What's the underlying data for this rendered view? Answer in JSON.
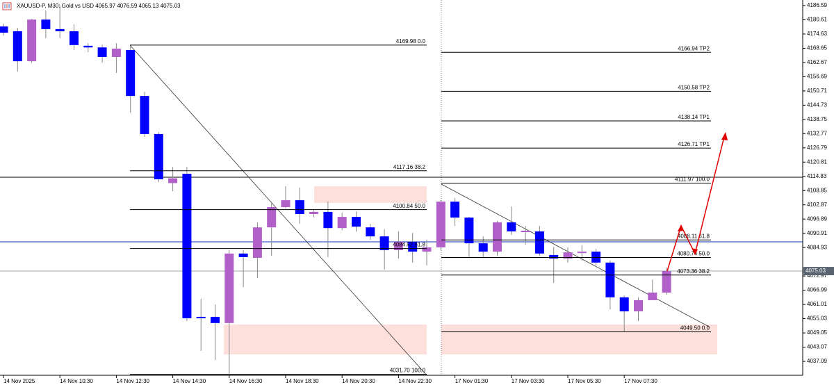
{
  "chart_data": {
    "type": "candlestick",
    "title": "XAUUSD-P, M30:  Gold vs USD  4065.97 4076.59 4065.13 4075.03",
    "categories": [
      "14 Nov 2025",
      null,
      null,
      null,
      "14 Nov 10:30",
      null,
      null,
      null,
      "14 Nov 12:30",
      null,
      null,
      null,
      "14 Nov 14:30",
      null,
      null,
      null,
      "14 Nov 16:30",
      null,
      null,
      null,
      "14 Nov 18:30",
      null,
      null,
      null,
      "14 Nov 20:30",
      null,
      null,
      null,
      "14 Nov 22:30",
      null,
      null,
      null,
      "17 Nov 01:30",
      null,
      null,
      null,
      "17 Nov 03:30",
      null,
      null,
      null,
      "17 Nov 05:30",
      null,
      null,
      null,
      "17 Nov 07:30",
      null,
      null,
      null
    ],
    "open": [
      4177.8,
      4175.8,
      4163.2,
      4180.7,
      4176.7,
      4175.8,
      4169.7,
      4169.0,
      4165.0,
      4167.9,
      4148.6,
      4132.6,
      4112.0,
      4115.9,
      4055.8,
      4055.8,
      4053.2,
      4082.4,
      4080.6,
      4093.4,
      4101.9,
      4104.8,
      4099.0,
      4099.9,
      4093.1,
      4097.8,
      4093.4,
      4089.6,
      4083.8,
      4087.3,
      4083.2,
      4085.0,
      4104.2,
      4097.5,
      4086.7,
      4083.2,
      4095.5,
      4091.4,
      4091.7,
      4081.8,
      4080.3,
      4082.6,
      4083.2,
      4078.6,
      4064.0,
      4058.1,
      4062.8,
      4065.97
    ],
    "high": [
      4179.0,
      4177.2,
      4181.0,
      4184.5,
      4186.6,
      4178.7,
      4170.8,
      4170.2,
      4170.8,
      4169.98,
      4150.3,
      4133.4,
      4118.8,
      4118.8,
      4063.4,
      4061.0,
      4083.8,
      4083.8,
      4095.5,
      4104.2,
      4110.7,
      4110.1,
      4101.0,
      4104.2,
      4099.6,
      4100.0,
      4094.9,
      4092.6,
      4091.7,
      4091.1,
      4088.2,
      4104.8,
      4105.7,
      4097.8,
      4089.6,
      4096.1,
      4102.2,
      4094.0,
      4094.0,
      4085.2,
      4085.0,
      4086.0,
      4084.4,
      4079.4,
      4064.8,
      4064.0,
      4071.5,
      4076.59
    ],
    "low": [
      4174.0,
      4158.9,
      4162.5,
      4172.9,
      4172.9,
      4167.9,
      4167.0,
      4162.6,
      4158.3,
      4141.6,
      4131.4,
      4112.4,
      4108.6,
      4054.0,
      4041.5,
      4037.7,
      4031.7,
      4068.3,
      4072.1,
      4081.5,
      4101.3,
      4094.9,
      4097.6,
      4080.9,
      4092.2,
      4091.6,
      4088.2,
      4075.6,
      4080.3,
      4078.6,
      4077.4,
      4083.8,
      4094.0,
      4080.9,
      4080.9,
      4081.5,
      4090.2,
      4086.1,
      4081.5,
      4070.1,
      4078.6,
      4079.4,
      4077.4,
      4059.0,
      4049.5,
      4054.0,
      4062.8,
      4065.13
    ],
    "close": [
      4175.2,
      4163.2,
      4180.7,
      4176.7,
      4175.8,
      4170.0,
      4169.0,
      4165.0,
      4168.5,
      4148.6,
      4132.6,
      4113.6,
      4114.0,
      4055.2,
      4055.2,
      4053.2,
      4082.4,
      4080.9,
      4093.4,
      4101.9,
      4104.8,
      4099.0,
      4099.9,
      4093.1,
      4097.8,
      4093.7,
      4089.6,
      4083.8,
      4087.3,
      4083.2,
      4085.0,
      4104.2,
      4097.5,
      4086.7,
      4083.2,
      4095.5,
      4091.7,
      4092.0,
      4082.4,
      4080.3,
      4082.9,
      4083.2,
      4078.6,
      4064.0,
      4058.1,
      4062.8,
      4066.0,
      4075.03
    ],
    "up_color": "#b060c8",
    "down_color": "#0000ff",
    "ylim": [
      4031.25,
      4188.93
    ],
    "yticks": [
      4186.59,
      4180.61,
      4174.63,
      4168.65,
      4162.67,
      4156.69,
      4150.71,
      4144.73,
      4138.75,
      4132.77,
      4126.79,
      4120.81,
      4114.83,
      4108.85,
      4102.87,
      4096.89,
      4090.91,
      4084.93,
      4072.97,
      4066.99,
      4061.01,
      4055.03,
      4049.05,
      4043.07,
      4037.09
    ],
    "fib_left": [
      {
        "value": 4169.98,
        "label": "4169.98 0.0"
      },
      {
        "value": 4117.16,
        "label": "4117.16 38.2"
      },
      {
        "value": 4100.84,
        "label": "4100.84 50.0"
      },
      {
        "value": 4084.52,
        "label": "4084.52 61.8"
      },
      {
        "value": 4031.7,
        "label": "4031.70 100.0"
      }
    ],
    "fib_right": [
      {
        "value": 4166.94,
        "label": "4166.94 TP2"
      },
      {
        "value": 4150.58,
        "label": "4150.58 TP2"
      },
      {
        "value": 4138.14,
        "label": "4138.14 TP1"
      },
      {
        "value": 4126.71,
        "label": "4126.71 TP1"
      },
      {
        "value": 4111.97,
        "label": "4111.97 100.0"
      },
      {
        "value": 4088.11,
        "label": "4088.11 61.8"
      },
      {
        "value": 4080.74,
        "label": "4080.74 50.0"
      },
      {
        "value": 4073.36,
        "label": "4073.36 38.2"
      },
      {
        "value": 4049.5,
        "label": "4049.50 0.0"
      }
    ]
  }
}
